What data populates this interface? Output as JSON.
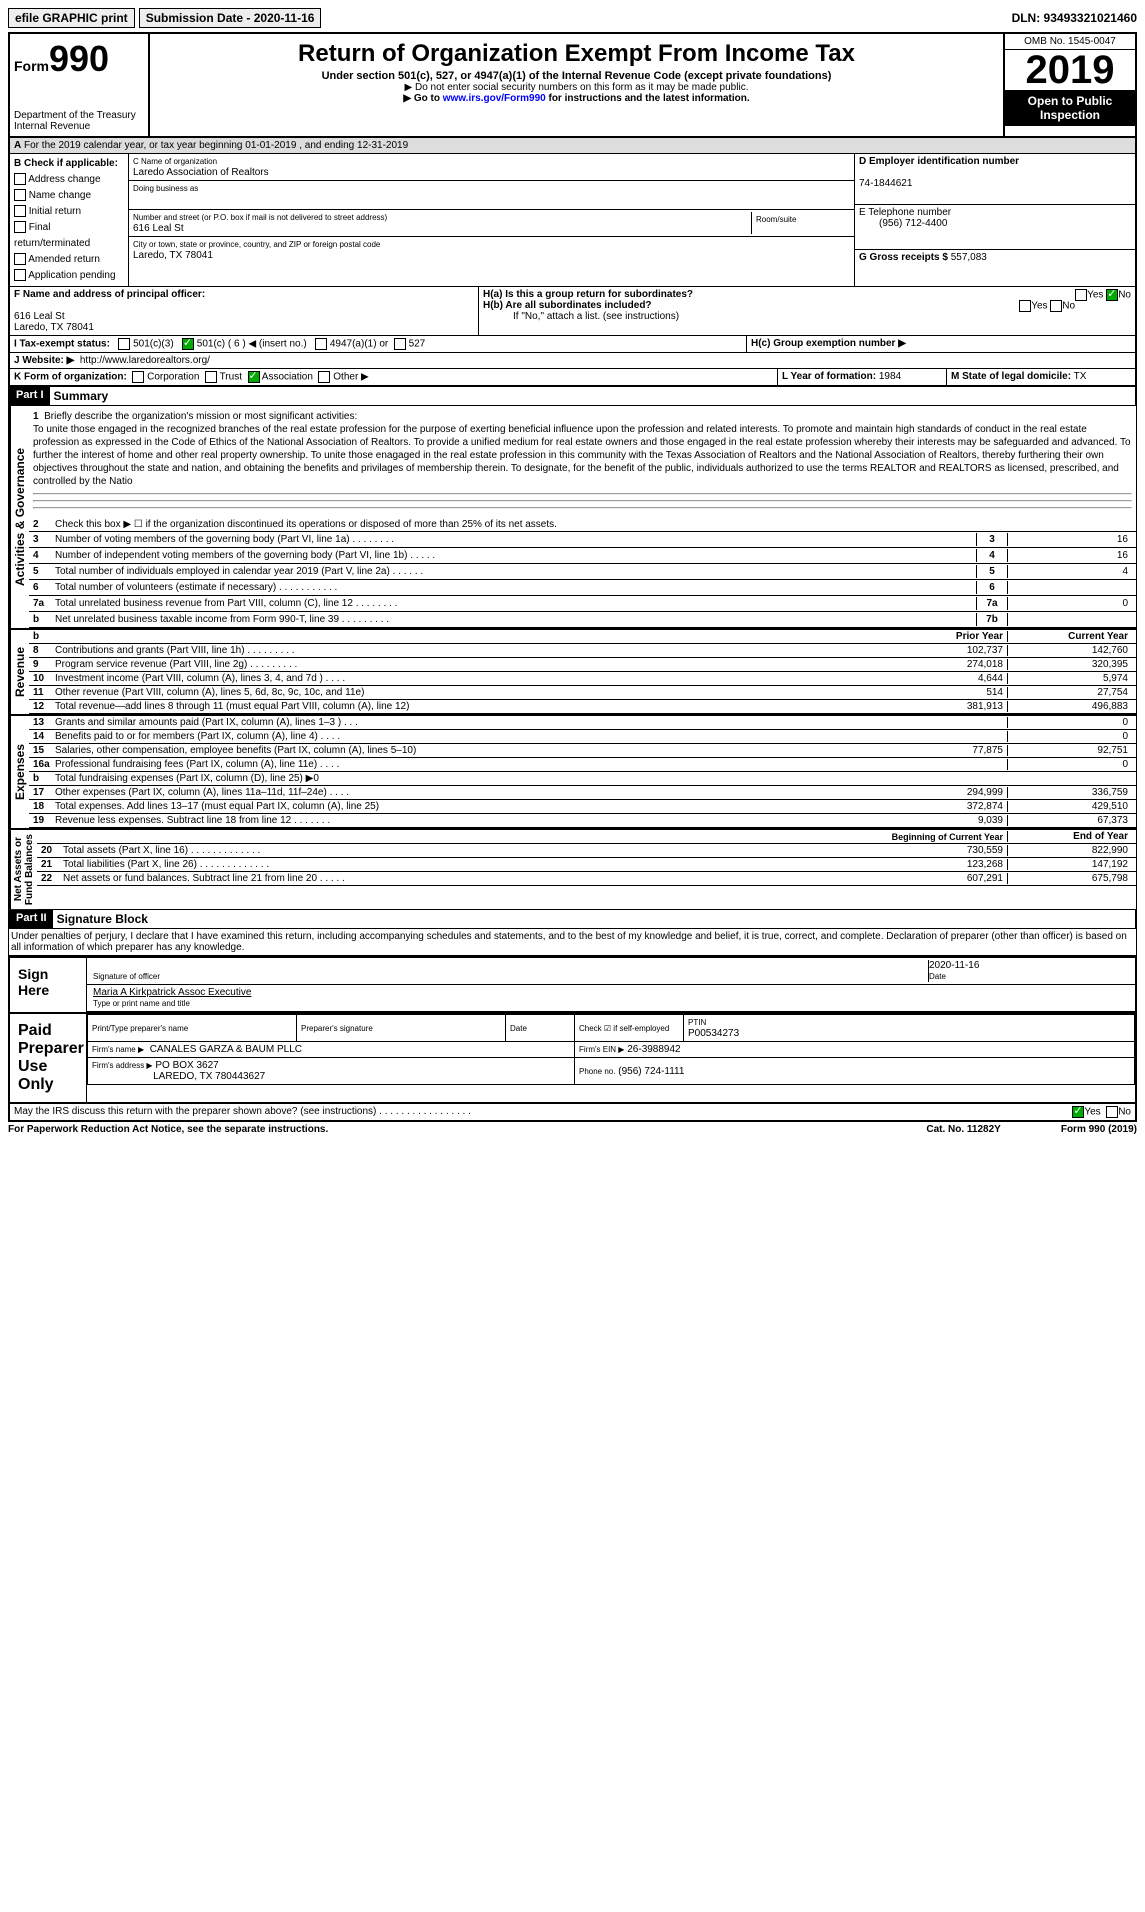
{
  "topbar": {
    "efile": "efile GRAPHIC print",
    "subdate_label": "Submission Date - ",
    "subdate": "2020-11-16",
    "dln": "DLN: 93493321021460"
  },
  "header": {
    "form_prefix": "Form",
    "form_number": "990",
    "dept": "Department of the Treasury",
    "irs": "Internal Revenue",
    "title": "Return of Organization Exempt From Income Tax",
    "subtitle": "Under section 501(c), 527, or 4947(a)(1) of the Internal Revenue Code (except private foundations)",
    "note1": "▶ Do not enter social security numbers on this form as it may be made public.",
    "note2_pre": "▶ Go to ",
    "note2_link": "www.irs.gov/Form990",
    "note2_post": " for instructions and the latest information.",
    "omb": "OMB No. 1545-0047",
    "year": "2019",
    "inspect1": "Open to Public",
    "inspect2": "Inspection"
  },
  "periodA": "For the 2019 calendar year, or tax year beginning 01-01-2019    , and ending 12-31-2019",
  "boxB": {
    "label": "B Check if applicable:",
    "items": [
      "Address change",
      "Name change",
      "Initial return",
      "Final return/terminated",
      "Amended return",
      "Application pending"
    ]
  },
  "boxC": {
    "label": "C Name of organization",
    "name": "Laredo Association of Realtors",
    "dba_label": "Doing business as",
    "addr_label": "Number and street (or P.O. box if mail is not delivered to street address)",
    "addr": "616 Leal St",
    "room_label": "Room/suite",
    "city_label": "City or town, state or province, country, and ZIP or foreign postal code",
    "city": "Laredo, TX  78041"
  },
  "boxD": {
    "label": "D Employer identification number",
    "val": "74-1844621"
  },
  "boxE": {
    "label": "E Telephone number",
    "val": "(956) 712-4400"
  },
  "boxG": {
    "label": "G Gross receipts $",
    "val": "557,083"
  },
  "boxF": {
    "label": "F  Name and address of principal officer:",
    "addr1": "616 Leal St",
    "addr2": "Laredo, TX  78041"
  },
  "boxH": {
    "a": "H(a)  Is this a group return for subordinates?",
    "b": "H(b)  Are all subordinates included?",
    "b2": "If \"No,\" attach a list. (see instructions)",
    "c": "H(c)  Group exemption number ▶",
    "yes": "Yes",
    "no": "No"
  },
  "boxI": {
    "label": "I   Tax-exempt status:",
    "c3": "501(c)(3)",
    "c": "501(c) ( 6 ) ◀ (insert no.)",
    "a1": "4947(a)(1) or",
    "s527": "527"
  },
  "boxJ": {
    "label": "J   Website: ▶",
    "val": "http://www.laredorealtors.org/"
  },
  "boxK": {
    "label": "K Form of organization:",
    "corp": "Corporation",
    "trust": "Trust",
    "assoc": "Association",
    "other": "Other ▶"
  },
  "boxL": {
    "label": "L Year of formation:",
    "val": "1984"
  },
  "boxM": {
    "label": "M State of legal domicile:",
    "val": "TX"
  },
  "part1": {
    "label": "Part I",
    "title": "Summary"
  },
  "mission": {
    "num": "1",
    "label": "Briefly describe the organization's mission or most significant activities:",
    "text": "To unite those engaged in the recognized branches of the real estate profession for the purpose of exerting beneficial influence upon the profession and related interests. To promote and maintain high standards of conduct in the real estate profession as expressed in the Code of Ethics of the National Association of Realtors. To provide a unified medium for real estate owners and those engaged in the real estate profession whereby their interests may be safeguarded and advanced. To further the interest of home and other real property ownership. To unite those enagaged in the real estate profession in this community with the Texas Association of Realtors and the National Association of Realtors, thereby furthering their own objectives throughout the state and nation, and obtaining the benefits and privilages of membership therein. To designate, for the benefit of the public, individuals authorized to use the terms REALTOR and REALTORS as licensed, prescribed, and controlled by the Natio"
  },
  "gov": {
    "l2": "Check this box ▶ ☐ if the organization discontinued its operations or disposed of more than 25% of its net assets.",
    "rows": [
      {
        "n": "3",
        "d": "Number of voting members of the governing body (Part VI, line 1a)   .    .    .    .    .    .    .    .",
        "b": "3",
        "v": "16"
      },
      {
        "n": "4",
        "d": "Number of independent voting members of the governing body (Part VI, line 1b)   .    .    .    .    .",
        "b": "4",
        "v": "16"
      },
      {
        "n": "5",
        "d": "Total number of individuals employed in calendar year 2019 (Part V, line 2a)   .    .    .    .    .    .",
        "b": "5",
        "v": "4"
      },
      {
        "n": "6",
        "d": "Total number of volunteers (estimate if necessary)   .    .    .    .    .    .    .    .    .    .    .",
        "b": "6",
        "v": ""
      },
      {
        "n": "7a",
        "d": "Total unrelated business revenue from Part VIII, column (C), line 12   .    .    .    .    .    .    .    .",
        "b": "7a",
        "v": "0"
      },
      {
        "n": "b",
        "d": "Net unrelated business taxable income from Form 990-T, line 39   .    .    .    .    .    .    .    .    .",
        "b": "7b",
        "v": ""
      }
    ]
  },
  "pycy": {
    "prior": "Prior Year",
    "current": "Current Year"
  },
  "revenue": [
    {
      "n": "8",
      "d": "Contributions and grants (Part VIII, line 1h)   .    .    .    .    .    .    .    .    .",
      "p": "102,737",
      "c": "142,760"
    },
    {
      "n": "9",
      "d": "Program service revenue (Part VIII, line 2g)   .    .    .    .    .    .    .    .    .",
      "p": "274,018",
      "c": "320,395"
    },
    {
      "n": "10",
      "d": "Investment income (Part VIII, column (A), lines 3, 4, and 7d )   .    .    .    .",
      "p": "4,644",
      "c": "5,974"
    },
    {
      "n": "11",
      "d": "Other revenue (Part VIII, column (A), lines 5, 6d, 8c, 9c, 10c, and 11e)",
      "p": "514",
      "c": "27,754"
    },
    {
      "n": "12",
      "d": "Total revenue—add lines 8 through 11 (must equal Part VIII, column (A), line 12)",
      "p": "381,913",
      "c": "496,883"
    }
  ],
  "expenses": [
    {
      "n": "13",
      "d": "Grants and similar amounts paid (Part IX, column (A), lines 1–3 )   .    .    .",
      "p": "",
      "c": "0"
    },
    {
      "n": "14",
      "d": "Benefits paid to or for members (Part IX, column (A), line 4)   .    .    .    .",
      "p": "",
      "c": "0"
    },
    {
      "n": "15",
      "d": "Salaries, other compensation, employee benefits (Part IX, column (A), lines 5–10)",
      "p": "77,875",
      "c": "92,751"
    },
    {
      "n": "16a",
      "d": "Professional fundraising fees (Part IX, column (A), line 11e)   .    .    .    .",
      "p": "",
      "c": "0"
    },
    {
      "n": "b",
      "d": "Total fundraising expenses (Part IX, column (D), line 25) ▶0",
      "p": "",
      "c": "",
      "shade": true
    },
    {
      "n": "17",
      "d": "Other expenses (Part IX, column (A), lines 11a–11d, 11f–24e)   .    .    .    .",
      "p": "294,999",
      "c": "336,759"
    },
    {
      "n": "18",
      "d": "Total expenses. Add lines 13–17 (must equal Part IX, column (A), line 25)",
      "p": "372,874",
      "c": "429,510"
    },
    {
      "n": "19",
      "d": "Revenue less expenses. Subtract line 18 from line 12   .    .    .    .    .    .    .",
      "p": "9,039",
      "c": "67,373"
    }
  ],
  "bcey": {
    "begin": "Beginning of Current Year",
    "end": "End of Year"
  },
  "netassets": [
    {
      "n": "20",
      "d": "Total assets (Part X, line 16)   .    .    .    .    .    .    .    .    .    .    .    .    .",
      "p": "730,559",
      "c": "822,990"
    },
    {
      "n": "21",
      "d": "Total liabilities (Part X, line 26)   .    .    .    .    .    .    .    .    .    .    .    .    .",
      "p": "123,268",
      "c": "147,192"
    },
    {
      "n": "22",
      "d": "Net assets or fund balances. Subtract line 21 from line 20   .    .    .    .    .",
      "p": "607,291",
      "c": "675,798"
    }
  ],
  "part2": {
    "label": "Part II",
    "title": "Signature Block"
  },
  "sig": {
    "penalty": "Under penalties of perjury, I declare that I have examined this return, including accompanying schedules and statements, and to the best of my knowledge and belief, it is true, correct, and complete. Declaration of preparer (other than officer) is based on all information of which preparer has any knowledge.",
    "sign_here": "Sign Here",
    "sig_officer": "Signature of officer",
    "date": "Date",
    "sig_date": "2020-11-16",
    "name": "Maria A Kirkpatrick  Assoc Executive",
    "name_label": "Type or print name and title",
    "paid": "Paid Preparer Use Only",
    "print_label": "Print/Type preparer's name",
    "prep_sig": "Preparer's signature",
    "check_label": "Check ☑ if self-employed",
    "ptin_label": "PTIN",
    "ptin": "P00534273",
    "firm_name_label": "Firm's name    ▶",
    "firm_name": "CANALES GARZA & BAUM PLLC",
    "firm_ein_label": "Firm's EIN ▶",
    "firm_ein": "26-3988942",
    "firm_addr_label": "Firm's address ▶",
    "firm_addr1": "PO BOX 3627",
    "firm_addr2": "LAREDO, TX  780443627",
    "phone_label": "Phone no.",
    "phone": "(956) 724-1111",
    "discuss": "May the IRS discuss this return with the preparer shown above? (see instructions)   .    .    .    .    .    .    .    .    .    .    .    .    .    .    .    .    ."
  },
  "footer": {
    "left": "For Paperwork Reduction Act Notice, see the separate instructions.",
    "mid": "Cat. No. 11282Y",
    "right": "Form 990 (2019)"
  }
}
